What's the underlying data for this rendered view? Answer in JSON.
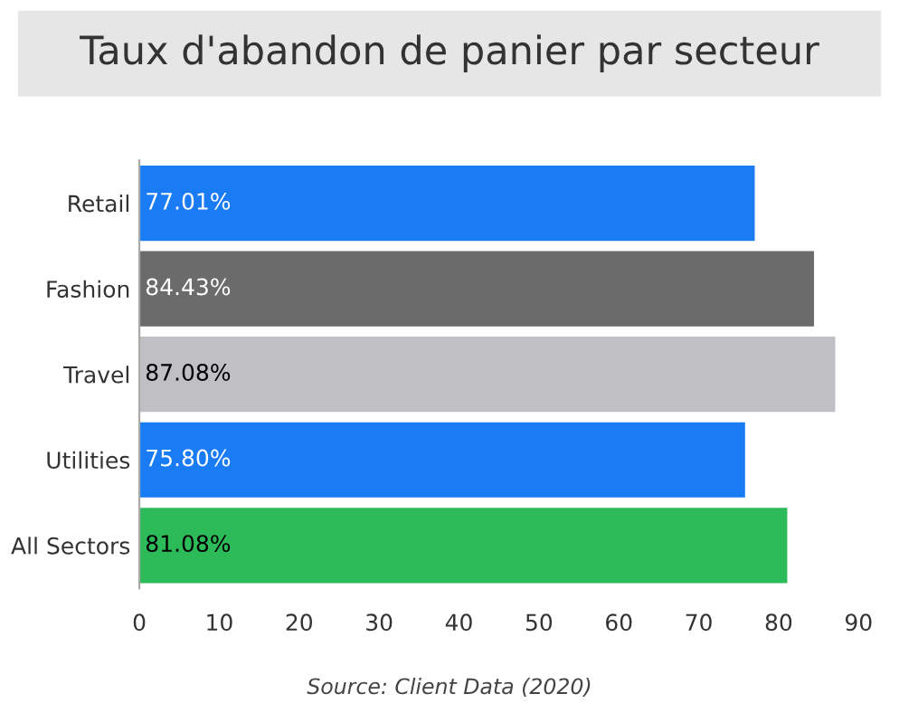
{
  "chart_data": {
    "type": "bar",
    "orientation": "horizontal",
    "title": "Taux d'abandon de panier par secteur",
    "categories": [
      "Retail",
      "Fashion",
      "Travel",
      "Utilities",
      "All Sectors"
    ],
    "values": [
      77.01,
      84.43,
      87.08,
      75.8,
      81.08
    ],
    "value_labels": [
      "77.01%",
      "84.43%",
      "87.08%",
      "75.80%",
      "81.08%"
    ],
    "colors": [
      "#1a7cf5",
      "#6b6b6b",
      "#c0c0c4",
      "#1a7cf5",
      "#2dbb5a"
    ],
    "xlim": [
      0,
      90
    ],
    "xticks": [
      0,
      10,
      20,
      30,
      40,
      50,
      60,
      70,
      80,
      90
    ],
    "grid": false,
    "annotations": [
      "Source: Client Data (2020)"
    ]
  }
}
